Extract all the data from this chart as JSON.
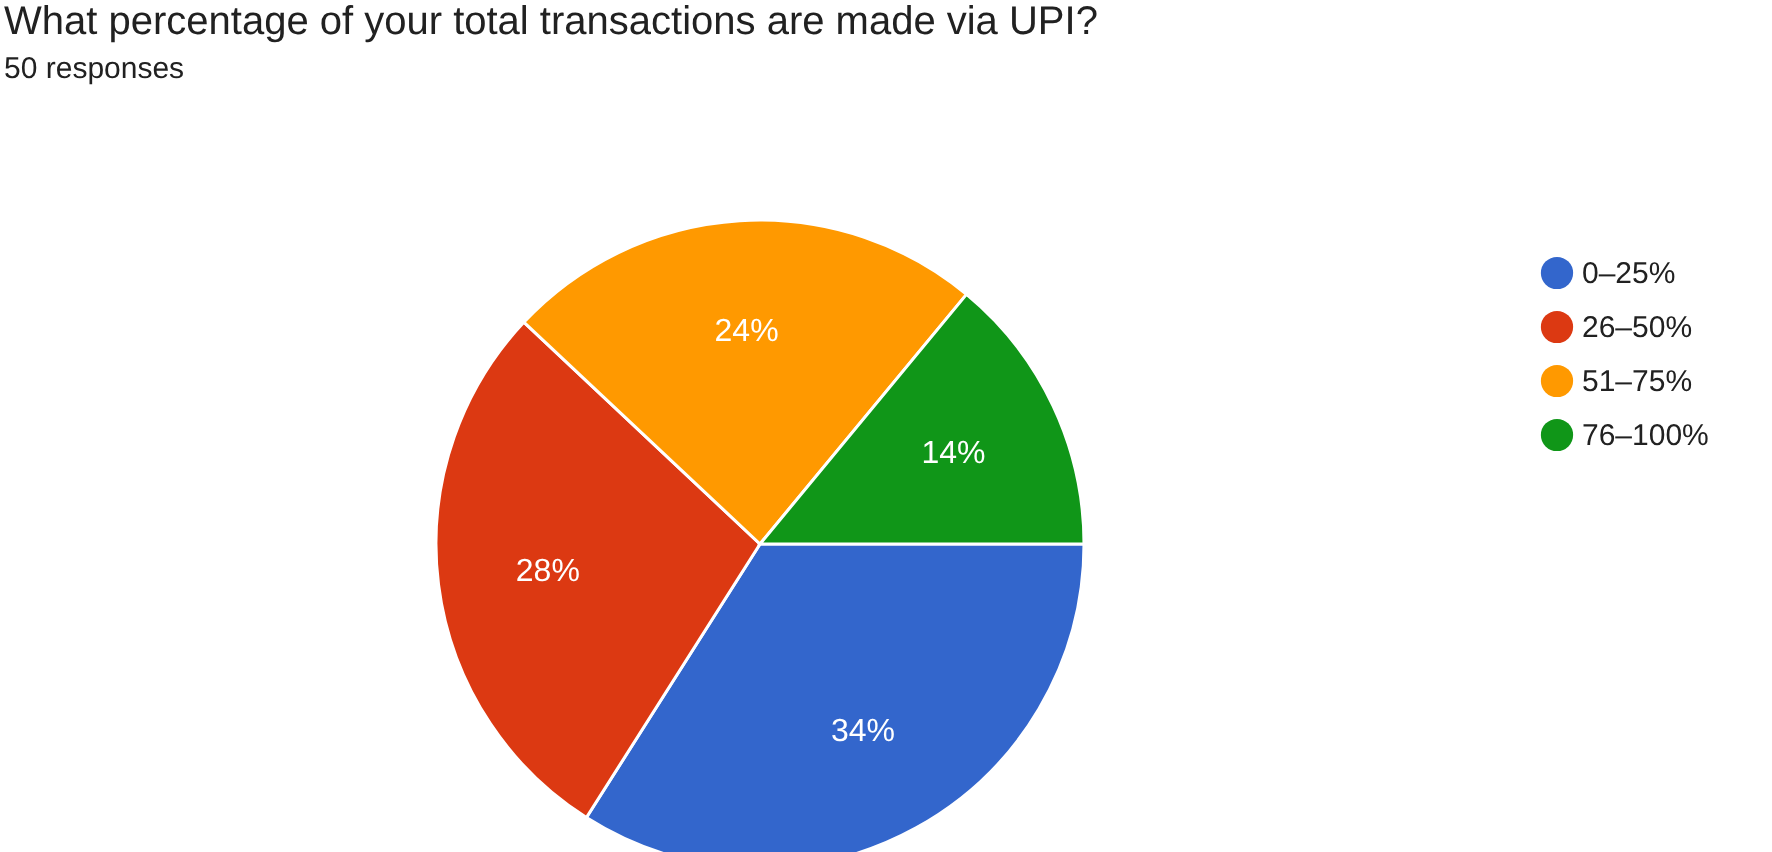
{
  "chart_data": {
    "type": "pie",
    "title": "What percentage of your total transactions are made via UPI?",
    "subtitle": "50 responses",
    "categories": [
      "0–25%",
      "26–50%",
      "51–75%",
      "76–100%"
    ],
    "values": [
      34,
      28,
      24,
      14
    ],
    "value_labels": [
      "34%",
      "28%",
      "24%",
      "14%"
    ],
    "colors": [
      "#3366cc",
      "#dc3912",
      "#ff9900",
      "#109618"
    ],
    "legend": "right"
  }
}
